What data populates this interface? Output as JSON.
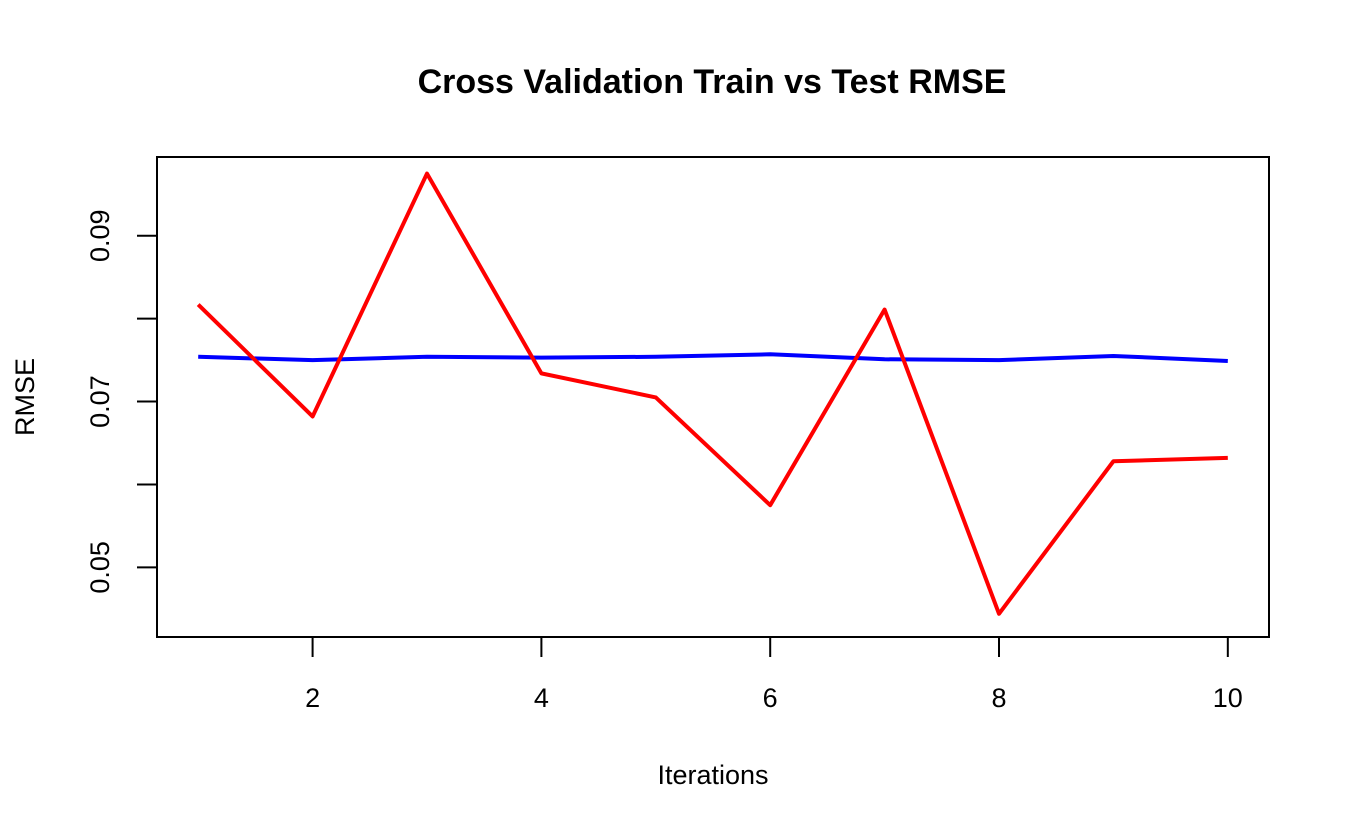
{
  "chart_data": {
    "type": "line",
    "title": "Cross Validation Train vs Test RMSE",
    "xlabel": "Iterations",
    "ylabel": "RMSE",
    "x": [
      1,
      2,
      3,
      4,
      5,
      6,
      7,
      8,
      9,
      10
    ],
    "series": [
      {
        "color": "#0000ff",
        "values": [
          0.0754,
          0.075,
          0.0754,
          0.0753,
          0.0754,
          0.0757,
          0.0751,
          0.075,
          0.0755,
          0.0749
        ]
      },
      {
        "color": "#ff0000",
        "values": [
          0.0817,
          0.0682,
          0.0975,
          0.0734,
          0.0705,
          0.0575,
          0.0811,
          0.0444,
          0.0628,
          0.0632
        ]
      }
    ],
    "xlim": [
      0.64,
      10.36
    ],
    "ylim": [
      0.0416,
      0.0995
    ],
    "x_ticks": [
      2,
      4,
      6,
      8,
      10
    ],
    "x_tick_labels": [
      "2",
      "4",
      "6",
      "8",
      "10"
    ],
    "y_ticks": [
      0.05,
      0.06,
      0.07,
      0.08,
      0.09
    ],
    "y_tick_labels": [
      "0.05",
      "",
      "0.07",
      "",
      "0.09"
    ],
    "grid": false,
    "legend": "none"
  }
}
